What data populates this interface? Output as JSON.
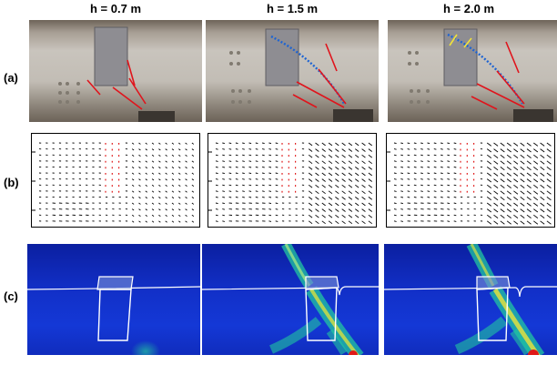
{
  "columns": [
    {
      "label": "h = 0.7 m"
    },
    {
      "label": "h = 1.5 m"
    },
    {
      "label": "h = 2.0 m"
    }
  ],
  "rows": [
    {
      "label": "(a)"
    },
    {
      "label": "(b)"
    },
    {
      "label": "(c)"
    }
  ],
  "colors": {
    "crack_red": "#e0141c",
    "fit_blue": "#1e64d2",
    "crack_yellow": "#f2e33a",
    "vector_red": "#e01818",
    "fem_blue": "#1230c8",
    "fem_green": "#22c7a0"
  }
}
